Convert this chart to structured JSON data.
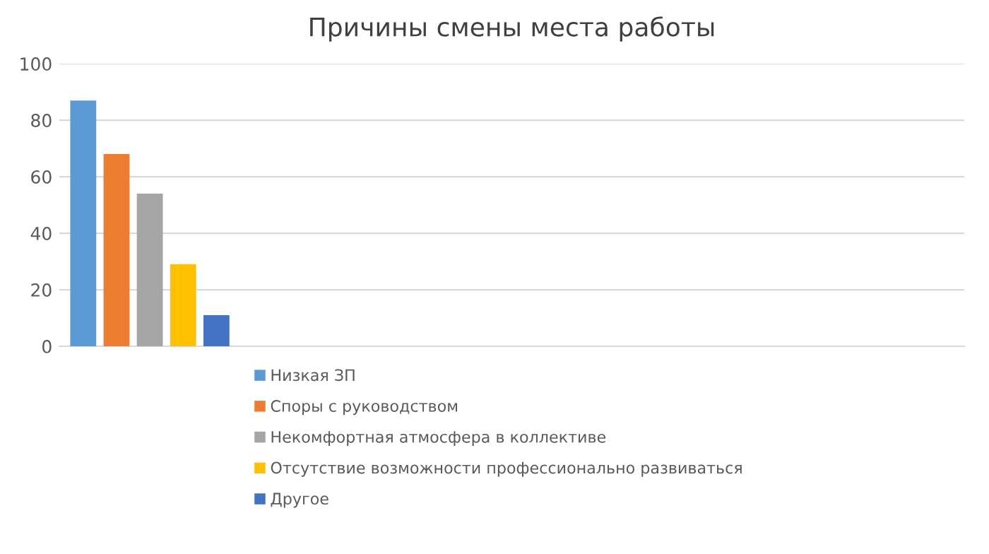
{
  "chart_data": {
    "type": "bar",
    "title": "Причины смены места работы",
    "categories": [
      null,
      null,
      null,
      null,
      null
    ],
    "series": [
      {
        "name": "Низкая ЗП",
        "color": "#5b9bd5",
        "values": [
          87,
          null,
          null,
          null,
          null
        ]
      },
      {
        "name": "Споры с руководством",
        "color": "#ed7d31",
        "values": [
          68,
          null,
          null,
          null,
          null
        ]
      },
      {
        "name": "Некомфортная атмосфера в коллективе",
        "color": "#a5a5a5",
        "values": [
          54,
          null,
          null,
          null,
          null
        ]
      },
      {
        "name": "Отсутствие возможности профессионально развиваться",
        "color": "#ffc000",
        "values": [
          29,
          null,
          null,
          null,
          null
        ]
      },
      {
        "name": "Другое",
        "color": "#4472c4",
        "values": [
          11,
          null,
          null,
          null,
          null
        ]
      }
    ],
    "ylim": [
      0,
      100
    ],
    "yticks": [
      0,
      20,
      40,
      60,
      80,
      100
    ],
    "grid": "y",
    "legend": "bottom"
  }
}
